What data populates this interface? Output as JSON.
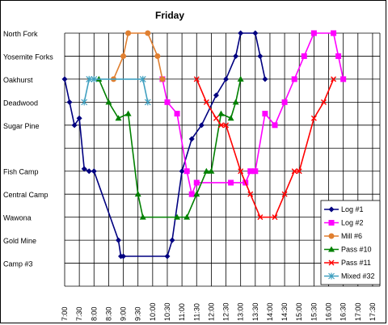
{
  "chart_data": {
    "type": "line",
    "title": "Friday",
    "xlabel": "",
    "ylabel": "",
    "x_ticks": [
      "7:00",
      "7:30",
      "8:00",
      "8:30",
      "9:00",
      "9:30",
      "10:00",
      "10:30",
      "11:00",
      "11:30",
      "12:00",
      "12:30",
      "13:00",
      "13:30",
      "14:00",
      "14:30",
      "15:00",
      "15:30",
      "16:00",
      "16:30",
      "17:00",
      "17:30"
    ],
    "stations": [
      "North Fork",
      "Yosemite Forks",
      "Oakhurst",
      "Deadwood",
      "Sugar Pine",
      "",
      "Fish Camp",
      "Central Camp",
      "Wawona",
      "Gold Mine",
      "Camp #3"
    ],
    "grid": true,
    "legend_position": "right-bottom",
    "series": [
      {
        "name": "Log #1",
        "color": "#000080",
        "marker": "diamond",
        "points": [
          [
            "7:00",
            "Oakhurst"
          ],
          [
            "7:10",
            "Deadwood"
          ],
          [
            "7:20",
            "Sugar Pine"
          ],
          [
            "7:30",
            "Sugar Pine -0.3"
          ],
          [
            "7:40",
            "Fish Camp -0.1"
          ],
          [
            "7:50",
            "Fish Camp"
          ],
          [
            "8:00",
            "Fish Camp"
          ],
          [
            "8:50",
            "Gold Mine"
          ],
          [
            "8:55",
            "Camp #3 -0.3"
          ],
          [
            "9:00",
            "Camp #3 -0.3"
          ],
          [
            "10:30",
            "Camp #3 -0.3"
          ],
          [
            "10:40",
            "Gold Mine"
          ],
          [
            "11:00",
            "Fish Camp"
          ],
          [
            "11:20",
            "Sugar Pine +0.6"
          ],
          [
            "11:40",
            "Sugar Pine"
          ],
          [
            "12:10",
            "Deadwood -0.3"
          ],
          [
            "12:30",
            "Oakhurst"
          ],
          [
            "12:50",
            "Yosemite Forks"
          ],
          [
            "13:00",
            "North Fork"
          ],
          [
            "13:30",
            "North Fork"
          ],
          [
            "13:40",
            "Yosemite Forks"
          ],
          [
            "13:50",
            "Oakhurst"
          ]
        ]
      },
      {
        "name": "Log #2",
        "color": "#ff00ff",
        "marker": "square",
        "points": [
          [
            "10:20",
            "Oakhurst"
          ],
          [
            "10:30",
            "Deadwood"
          ],
          [
            "10:50",
            "Sugar Pine -0.5"
          ],
          [
            "11:10",
            "Fish Camp"
          ],
          [
            "11:20",
            "Central Camp"
          ],
          [
            "11:30",
            "Central Camp -0.5"
          ],
          [
            "12:40",
            "Central Camp -0.5"
          ],
          [
            "13:10",
            "Central Camp -0.5"
          ],
          [
            "13:20",
            "Fish Camp"
          ],
          [
            "13:30",
            "Fish Camp"
          ],
          [
            "13:50",
            "Sugar Pine -0.5"
          ],
          [
            "14:10",
            "Sugar Pine"
          ],
          [
            "14:30",
            "Deadwood"
          ],
          [
            "14:50",
            "Oakhurst"
          ],
          [
            "15:10",
            "Yosemite Forks"
          ],
          [
            "15:30",
            "North Fork"
          ],
          [
            "16:10",
            "North Fork"
          ],
          [
            "16:20",
            "Yosemite Forks"
          ],
          [
            "16:30",
            "Oakhurst"
          ]
        ]
      },
      {
        "name": "Mill #6",
        "color": "#e07f30",
        "marker": "circle",
        "points": [
          [
            "8:40",
            "Oakhurst"
          ],
          [
            "9:00",
            "Yosemite Forks"
          ],
          [
            "9:10",
            "North Fork"
          ],
          [
            "9:50",
            "North Fork"
          ],
          [
            "10:10",
            "Yosemite Forks"
          ],
          [
            "10:20",
            "Oakhurst"
          ]
        ]
      },
      {
        "name": "Pass #10",
        "color": "#008000",
        "marker": "triangle",
        "points": [
          [
            "8:10",
            "Oakhurst"
          ],
          [
            "8:30",
            "Deadwood"
          ],
          [
            "8:50",
            "Sugar Pine -0.3"
          ],
          [
            "9:10",
            "Sugar Pine -0.5"
          ],
          [
            "9:30",
            "Central Camp"
          ],
          [
            "9:40",
            "Wawona"
          ],
          [
            "10:50",
            "Wawona"
          ],
          [
            "11:10",
            "Wawona"
          ],
          [
            "11:30",
            "Central Camp"
          ],
          [
            "11:50",
            "Fish Camp"
          ],
          [
            "12:00",
            "Fish Camp"
          ],
          [
            "12:20",
            "Sugar Pine -0.5"
          ],
          [
            "12:40",
            "Sugar Pine -0.3"
          ],
          [
            "12:50",
            "Deadwood"
          ],
          [
            "13:00",
            "Oakhurst"
          ]
        ]
      },
      {
        "name": "Pass #11",
        "color": "#ff0000",
        "marker": "x",
        "points": [
          [
            "11:30",
            "Oakhurst"
          ],
          [
            "11:50",
            "Deadwood"
          ],
          [
            "12:10",
            "Deadwood +0.7"
          ],
          [
            "12:20",
            "Sugar Pine"
          ],
          [
            "12:30",
            "Sugar Pine"
          ],
          [
            "13:00",
            "Fish Camp"
          ],
          [
            "13:20",
            "Central Camp"
          ],
          [
            "13:40",
            "Wawona"
          ],
          [
            "14:10",
            "Wawona"
          ],
          [
            "14:30",
            "Central Camp"
          ],
          [
            "14:50",
            "Fish Camp"
          ],
          [
            "15:00",
            "Fish Camp"
          ],
          [
            "15:30",
            "Sugar Pine -0.3"
          ],
          [
            "15:50",
            "Deadwood"
          ],
          [
            "16:10",
            "Oakhurst"
          ]
        ]
      },
      {
        "name": "Mixed #32",
        "color": "#40a0c0",
        "marker": "star",
        "points": [
          [
            "7:40",
            "Deadwood"
          ],
          [
            "7:50",
            "Oakhurst"
          ],
          [
            "8:00",
            "Oakhurst"
          ],
          [
            "9:40",
            "Oakhurst"
          ],
          [
            "9:50",
            "Deadwood"
          ]
        ]
      }
    ]
  }
}
